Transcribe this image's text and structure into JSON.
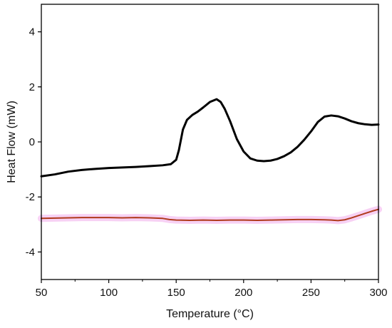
{
  "chart_data": {
    "type": "line",
    "title": "",
    "xlabel": "Temperature (°C)",
    "ylabel": "Heat Flow (mW)",
    "xlim": [
      50,
      300
    ],
    "ylim": [
      -5,
      5
    ],
    "x_ticks": [
      50,
      100,
      150,
      200,
      250,
      300
    ],
    "y_ticks": [
      -4,
      -2,
      0,
      2,
      4
    ],
    "x_tick_labels": [
      "50",
      "100",
      "150",
      "200",
      "250",
      "300"
    ],
    "y_tick_labels": [
      "-4",
      "-2",
      "0",
      "2",
      "4"
    ],
    "grid": false,
    "legend": "none",
    "series": [
      {
        "color": "#000000",
        "x": [
          50,
          60,
          70,
          80,
          90,
          100,
          110,
          120,
          130,
          140,
          146,
          150,
          152,
          155,
          158,
          162,
          166,
          170,
          175,
          180,
          183,
          186,
          190,
          195,
          200,
          205,
          210,
          215,
          220,
          225,
          230,
          235,
          240,
          245,
          250,
          255,
          260,
          265,
          270,
          275,
          280,
          285,
          290,
          295,
          300
        ],
        "y": [
          -1.25,
          -1.18,
          -1.08,
          -1.02,
          -0.98,
          -0.95,
          -0.93,
          -0.91,
          -0.88,
          -0.85,
          -0.81,
          -0.65,
          -0.3,
          0.45,
          0.8,
          0.98,
          1.1,
          1.25,
          1.45,
          1.55,
          1.45,
          1.2,
          0.75,
          0.1,
          -0.35,
          -0.6,
          -0.68,
          -0.7,
          -0.68,
          -0.62,
          -0.52,
          -0.38,
          -0.18,
          0.08,
          0.38,
          0.72,
          0.92,
          0.96,
          0.93,
          0.85,
          0.75,
          0.68,
          0.64,
          0.62,
          0.63
        ]
      },
      {
        "color": "#b03a1c",
        "band_color": "#f4c2f0",
        "x": [
          50,
          60,
          70,
          80,
          90,
          100,
          110,
          120,
          130,
          140,
          145,
          150,
          160,
          170,
          180,
          190,
          200,
          210,
          220,
          230,
          240,
          250,
          260,
          265,
          270,
          275,
          280,
          285,
          290,
          295,
          300
        ],
        "y": [
          -2.78,
          -2.77,
          -2.76,
          -2.75,
          -2.75,
          -2.75,
          -2.76,
          -2.75,
          -2.76,
          -2.78,
          -2.82,
          -2.84,
          -2.85,
          -2.84,
          -2.85,
          -2.84,
          -2.84,
          -2.85,
          -2.84,
          -2.83,
          -2.82,
          -2.82,
          -2.83,
          -2.84,
          -2.86,
          -2.83,
          -2.76,
          -2.68,
          -2.6,
          -2.52,
          -2.45
        ]
      }
    ]
  }
}
